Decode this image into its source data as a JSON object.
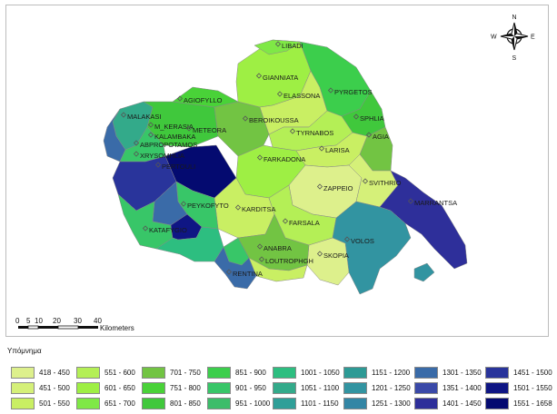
{
  "map": {
    "places": [
      {
        "name": "LIBADI"
      },
      {
        "name": "GIANNIATA"
      },
      {
        "name": "ELASSONA"
      },
      {
        "name": "PYRGETOS"
      },
      {
        "name": "AGIOFYLLO"
      },
      {
        "name": "MALAKASI"
      },
      {
        "name": "M_KERASIA"
      },
      {
        "name": "METEORA"
      },
      {
        "name": "BEROIKOUSSA"
      },
      {
        "name": "SPHLIA"
      },
      {
        "name": "KALAMBAKA"
      },
      {
        "name": "AGIA"
      },
      {
        "name": "TYRNABOS"
      },
      {
        "name": "ABPROPOTAMOS"
      },
      {
        "name": "LARISA"
      },
      {
        "name": "XRYSOMHLIA"
      },
      {
        "name": "PERTOULI"
      },
      {
        "name": "FARKADONA"
      },
      {
        "name": "SVITHRIO"
      },
      {
        "name": "ZAPPEIO"
      },
      {
        "name": "MARRANTSA"
      },
      {
        "name": "KARDITSA"
      },
      {
        "name": "PEYKOFYTO"
      },
      {
        "name": "FARSALA"
      },
      {
        "name": "KATAFYGIO"
      },
      {
        "name": "VOLOS"
      },
      {
        "name": "ANABRA"
      },
      {
        "name": "SKOPIA"
      },
      {
        "name": "LOUTROPHGH"
      },
      {
        "name": "RENTINA"
      }
    ],
    "colors": {
      "c418": "#ddf08c",
      "c451": "#d5f079",
      "c501": "#c9ef63",
      "c551": "#b4ef56",
      "c601": "#9eef44",
      "c651": "#7fe846",
      "c701": "#72c443",
      "c751": "#49d238",
      "c801": "#40c83c",
      "c851": "#3cce4c",
      "c901": "#38c668",
      "c951": "#3dbd6a",
      "c1001": "#2dbe80",
      "c1051": "#33aa8a",
      "c1101": "#2f9f98",
      "c1151": "#2d9a95",
      "c1201": "#3294a1",
      "c1251": "#3386a5",
      "c1301": "#3a6ba8",
      "c1351": "#3a49a8",
      "c1401": "#2e2f9a",
      "c1451": "#29349b",
      "c1501": "#0f1684",
      "c1551": "#040a70"
    }
  },
  "scale": {
    "ticks": [
      "0",
      "5",
      "10",
      "20",
      "30",
      "40"
    ],
    "unit": "Kilometers"
  },
  "north_arrow": {
    "n": "N",
    "s": "S",
    "e": "E",
    "w": "W"
  },
  "legend": {
    "title": "Υπόμνημα",
    "items": [
      {
        "label": "418 - 450",
        "color": "#ddf08c"
      },
      {
        "label": "451 - 500",
        "color": "#d5f079"
      },
      {
        "label": "501 - 550",
        "color": "#c9ef63"
      },
      {
        "label": "551 - 600",
        "color": "#b4ef56"
      },
      {
        "label": "601 - 650",
        "color": "#9eef44"
      },
      {
        "label": "651 - 700",
        "color": "#7fe846"
      },
      {
        "label": "701 - 750",
        "color": "#72c443"
      },
      {
        "label": "751 - 800",
        "color": "#49d238"
      },
      {
        "label": "801 - 850",
        "color": "#40c83c"
      },
      {
        "label": "851 - 900",
        "color": "#3cce4c"
      },
      {
        "label": "901 - 950",
        "color": "#38c668"
      },
      {
        "label": "951 - 1000",
        "color": "#3dbd6a"
      },
      {
        "label": "1001 - 1050",
        "color": "#2dbe80"
      },
      {
        "label": "1051 - 1100",
        "color": "#33aa8a"
      },
      {
        "label": "1101 - 1150",
        "color": "#2f9f98"
      },
      {
        "label": "1151 - 1200",
        "color": "#2d9a95"
      },
      {
        "label": "1201 - 1250",
        "color": "#3294a1"
      },
      {
        "label": "1251 - 1300",
        "color": "#3386a5"
      },
      {
        "label": "1301 - 1350",
        "color": "#3a6ba8"
      },
      {
        "label": "1351 - 1400",
        "color": "#3a49a8"
      },
      {
        "label": "1401 - 1450",
        "color": "#2e2f9a"
      },
      {
        "label": "1451 - 1500",
        "color": "#29349b"
      },
      {
        "label": "1501 - 1550",
        "color": "#0f1684"
      },
      {
        "label": "1551 - 1658",
        "color": "#040a70"
      }
    ]
  }
}
